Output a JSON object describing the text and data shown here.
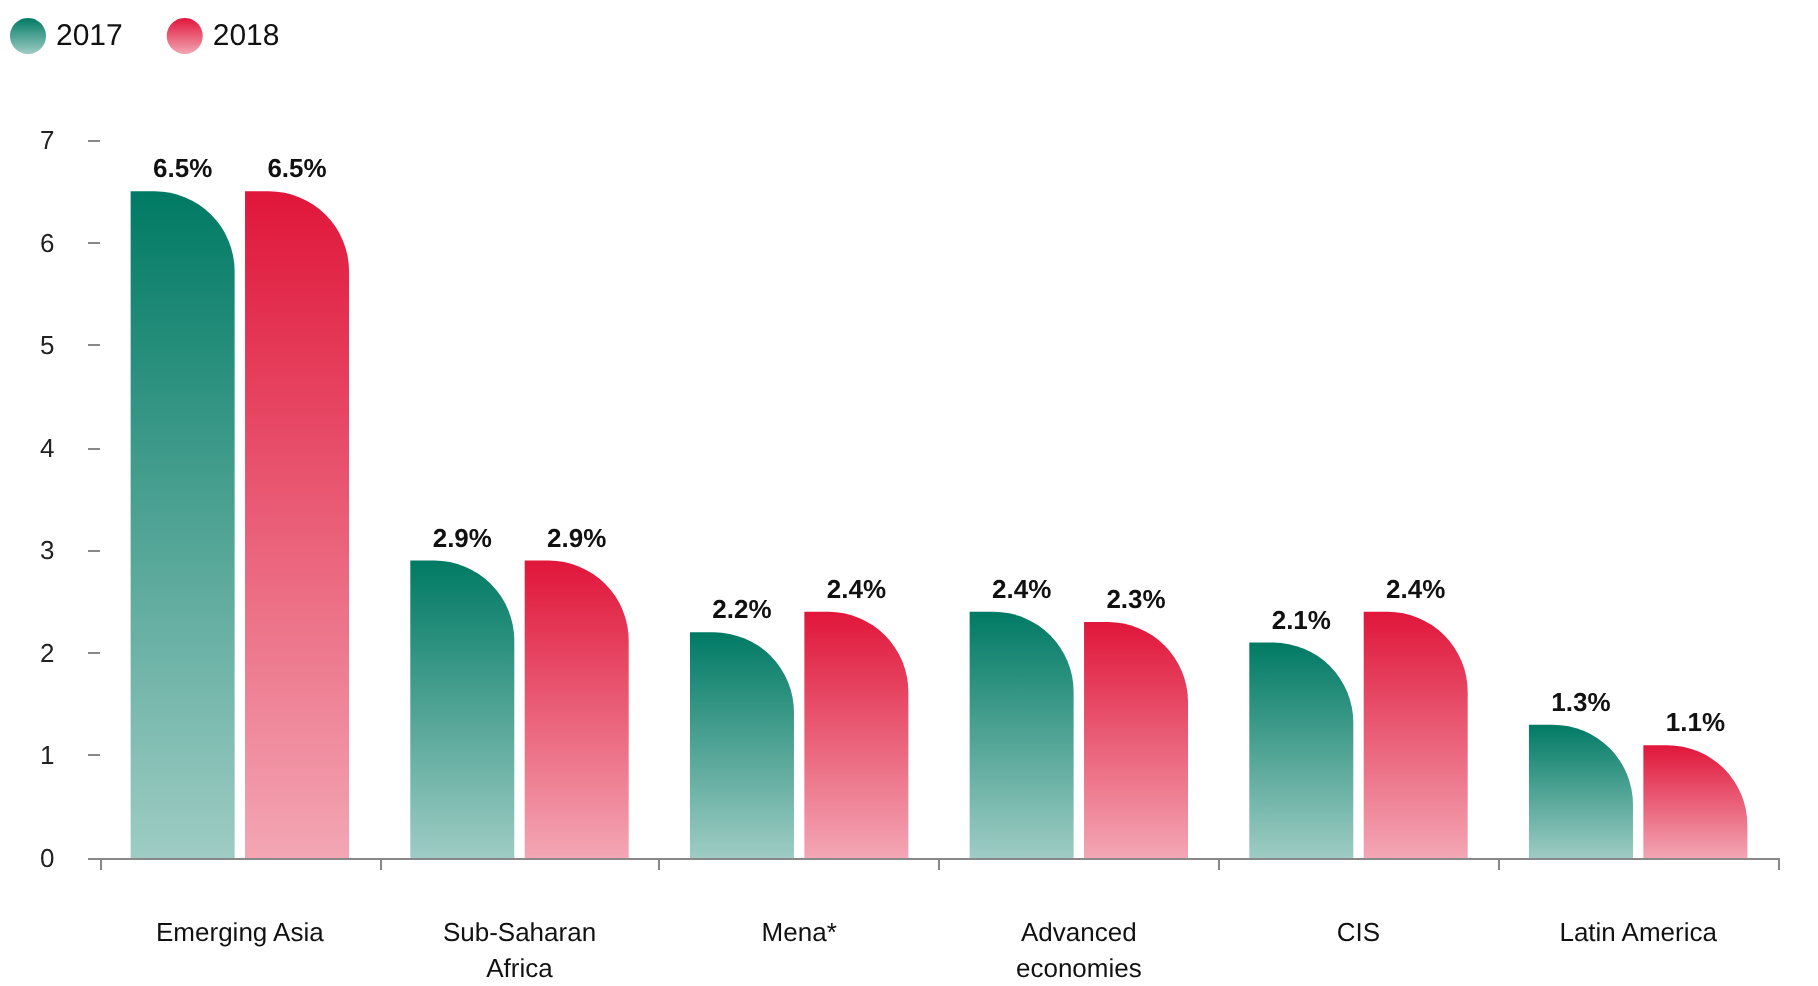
{
  "chart_data": {
    "type": "bar",
    "categories": [
      "Emerging Asia",
      "Sub-Saharan\nAfrica",
      "Mena*",
      "Advanced\neconomies",
      "CIS",
      "Latin America"
    ],
    "series": [
      {
        "name": "2017",
        "color": "#007a64",
        "values": [
          6.5,
          2.9,
          2.2,
          2.4,
          2.1,
          1.3
        ],
        "value_labels": [
          "6.5%",
          "2.9%",
          "2.2%",
          "2.4%",
          "2.1%",
          "1.3%"
        ]
      },
      {
        "name": "2018",
        "color": "#e0163a",
        "values": [
          6.5,
          2.9,
          2.4,
          2.3,
          2.4,
          1.1
        ],
        "value_labels": [
          "6.5%",
          "2.9%",
          "2.4%",
          "2.3%",
          "2.4%",
          "1.1%"
        ]
      }
    ],
    "ylim": [
      0,
      7
    ],
    "yticks": [
      0,
      1,
      2,
      3,
      4,
      5,
      6,
      7
    ],
    "grid": false,
    "legend": "top left"
  }
}
